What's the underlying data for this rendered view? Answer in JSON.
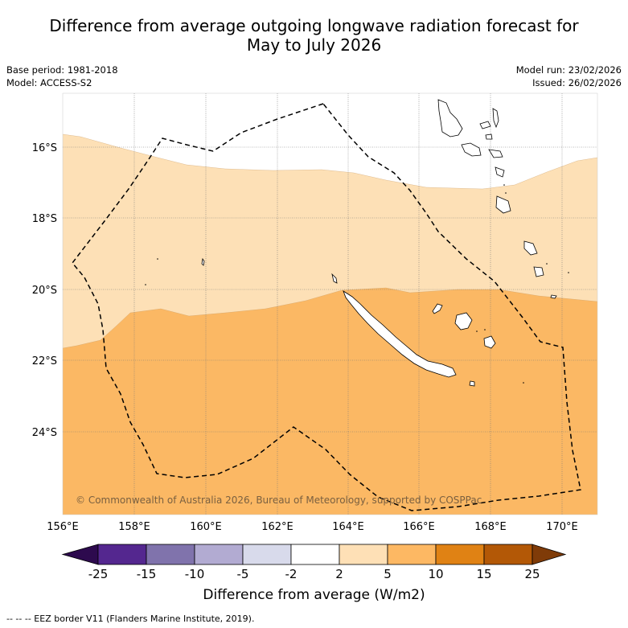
{
  "title": {
    "line1": "Difference from average outgoing longwave radiation forecast for",
    "line2": "May to July 2026"
  },
  "meta_left": {
    "base_period": "Base period: 1981-2018",
    "model": "Model: ACCESS-S2"
  },
  "meta_right": {
    "model_run": "Model run: 23/02/2026",
    "issued": "Issued: 26/02/2026"
  },
  "map": {
    "lat_labels": [
      "16°S",
      "18°S",
      "20°S",
      "22°S",
      "24°S"
    ],
    "lon_labels": [
      "156°E",
      "158°E",
      "160°E",
      "162°E",
      "164°E",
      "166°E",
      "168°E",
      "170°E"
    ],
    "copyright": "© Commonwealth of Australia 2026, Bureau of Meteorology, supported by COSPPac",
    "colors": {
      "pale_orange": "#fde0b6",
      "mid_orange": "#fbb864",
      "land_outline": "#000000",
      "grid": "#888888"
    }
  },
  "colorbar": {
    "ticks": [
      "-25",
      "-15",
      "-10",
      "-5",
      "-2",
      "2",
      "5",
      "10",
      "15",
      "25"
    ],
    "colors": [
      "#2d0a4e",
      "#54278f",
      "#8073ac",
      "#b2abd2",
      "#d8daeb",
      "#ffffff",
      "#fee0b6",
      "#fdb863",
      "#e08214",
      "#b35806",
      "#7f3b08"
    ],
    "title": "Difference from average (W/m2)"
  },
  "footer": "--  --  -- EEZ border V11 (Flanders Marine Institute, 2019)."
}
